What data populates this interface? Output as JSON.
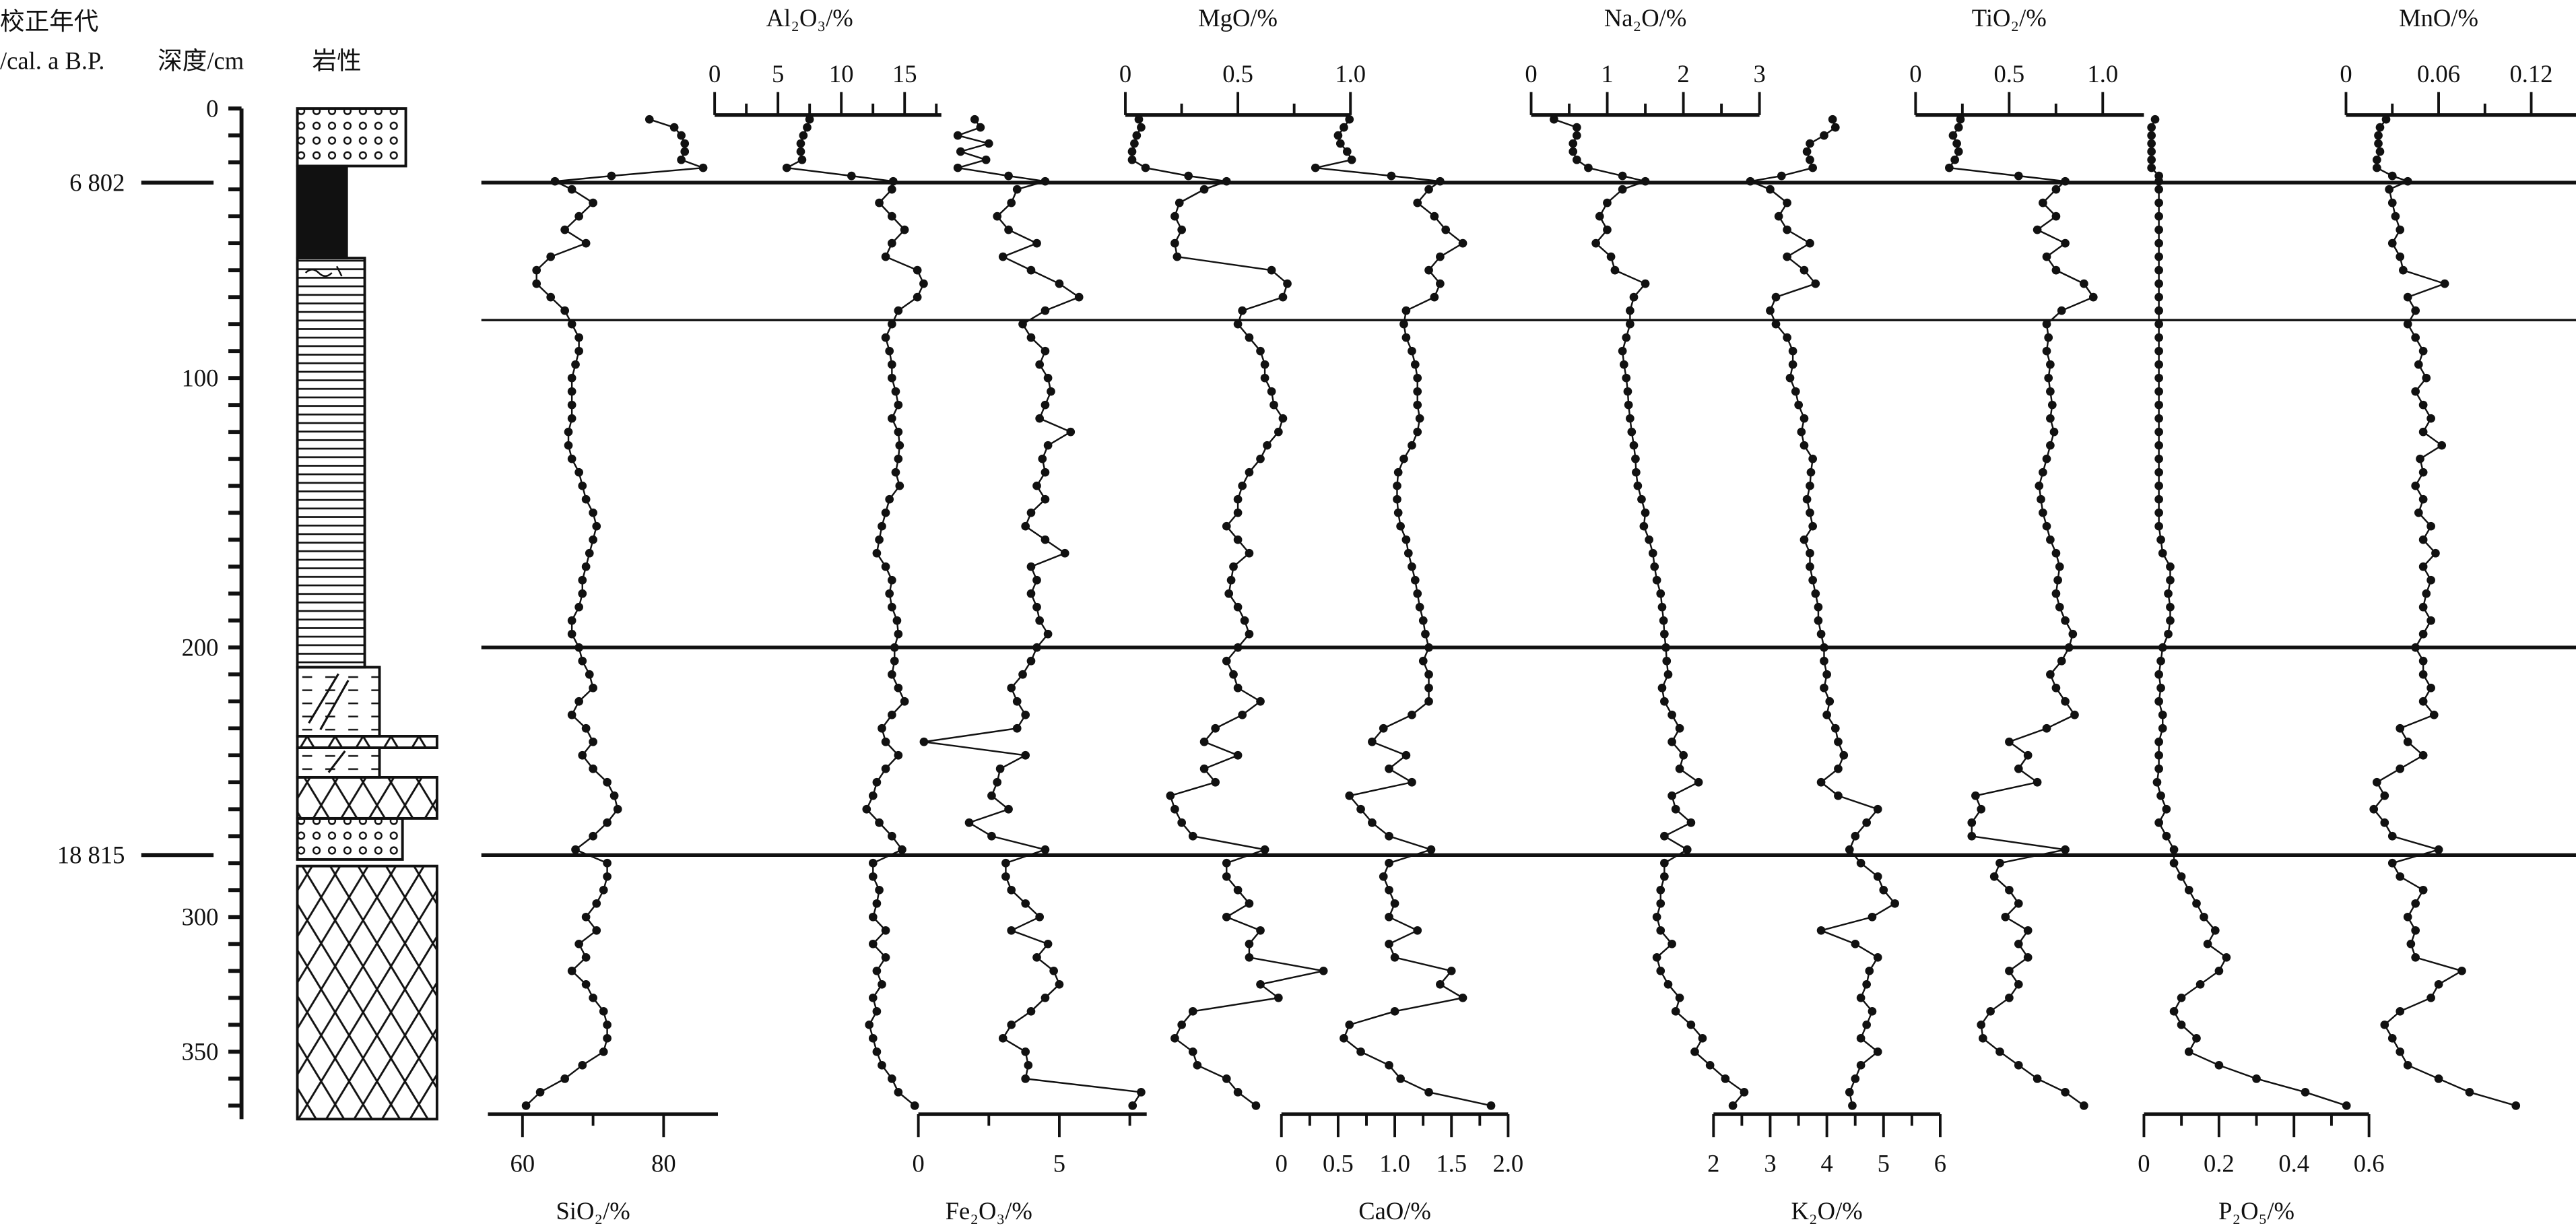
{
  "header": {
    "age_title_line1": "校正年代",
    "age_title_line2": "/cal. a B.P.",
    "depth_title": "深度/cm",
    "lithology_title": "岩性"
  },
  "ages": [
    {
      "label": "6 802",
      "depth_cm": 27.5
    },
    {
      "label": "18 815",
      "depth_cm": 277
    }
  ],
  "depth_axis": {
    "tick_labels": [
      "0",
      "100",
      "200",
      "300",
      "350"
    ],
    "minor_step_cm": 10,
    "range_cm": [
      0,
      375
    ]
  },
  "unit_boundaries_cm": [
    27.5,
    78.5,
    200,
    277
  ],
  "chart_data": {
    "type": "line",
    "title": "",
    "ylabel": "深度/cm",
    "y_reversed": true,
    "ylim": [
      0,
      375
    ],
    "markers": "filled-circle",
    "grid": false,
    "depth_cm": [
      4,
      7,
      10,
      13,
      16,
      19,
      22,
      25,
      27,
      30,
      35,
      40,
      45,
      50,
      55,
      60,
      65,
      70,
      75,
      80,
      85,
      90,
      95,
      100,
      105,
      110,
      115,
      120,
      125,
      130,
      135,
      140,
      145,
      150,
      155,
      160,
      165,
      170,
      175,
      180,
      185,
      190,
      195,
      200,
      205,
      210,
      215,
      220,
      225,
      230,
      235,
      240,
      245,
      250,
      255,
      260,
      265,
      270,
      275,
      280,
      285,
      290,
      295,
      300,
      305,
      310,
      315,
      320,
      325,
      330,
      335,
      340,
      345,
      350,
      355,
      360,
      365,
      370
    ],
    "series": [
      {
        "name": "SiO₂/%",
        "axis": "bottom",
        "xlim": [
          55.1,
          87.7
        ],
        "tick_labels": [
          "60",
          "80"
        ],
        "values": [
          78,
          81.5,
          82.5,
          83,
          83,
          82.5,
          85.6,
          72.6,
          64.6,
          67,
          70,
          68,
          66,
          69,
          64,
          62,
          62,
          64,
          66,
          67,
          68,
          68,
          67.5,
          67,
          67,
          67,
          67,
          66.5,
          66.5,
          67,
          68,
          68.5,
          69,
          70,
          70.5,
          70,
          69.5,
          69,
          68.5,
          68.5,
          68,
          67,
          67,
          68,
          68.5,
          69.5,
          70,
          68,
          67,
          69,
          70,
          68.5,
          70,
          72,
          73,
          73.5,
          72,
          70,
          67.5,
          72,
          72,
          71.5,
          70.5,
          69,
          70.5,
          68,
          69,
          67,
          69,
          70,
          71.5,
          72,
          72,
          71.5,
          68.5,
          66,
          62.5,
          60.5
        ]
      },
      {
        "name": "Al₂O₃/%",
        "axis": "top",
        "xlim": [
          0,
          17.9
        ],
        "tick_labels": [
          "0",
          "5",
          "10",
          "15"
        ],
        "values": [
          7.5,
          7.3,
          7,
          6.8,
          6.8,
          6.9,
          5.7,
          10.8,
          14.1,
          14,
          13,
          14,
          15,
          14,
          13.5,
          16,
          16.5,
          16,
          14.5,
          14,
          13.5,
          13.8,
          14,
          14,
          14.3,
          14.5,
          14,
          14.5,
          14.6,
          14.5,
          14.3,
          14.6,
          13.8,
          13.5,
          13.2,
          13,
          12.8,
          13.5,
          14,
          13.8,
          14,
          14.4,
          14.5,
          14.2,
          14.2,
          14,
          14.5,
          15,
          14,
          13.2,
          13.5,
          14.5,
          13.5,
          12.8,
          12.5,
          12,
          13,
          14,
          14.8,
          12.5,
          12.5,
          13,
          12.8,
          12.5,
          13.5,
          12.5,
          13.5,
          12.8,
          13.2,
          12.5,
          12.8,
          12.2,
          12.5,
          12.8,
          13.2,
          14,
          14.5,
          15.8
        ]
      },
      {
        "name": "Fe₂O₃/%",
        "axis": "bottom",
        "xlim": [
          0,
          8.1
        ],
        "tick_labels": [
          "0",
          "5"
        ],
        "values": [
          2,
          2.2,
          1.4,
          2.5,
          1.5,
          2.4,
          1.4,
          3.2,
          4.5,
          3.5,
          3.3,
          2.8,
          3.2,
          4.2,
          3,
          4,
          5,
          5.7,
          4.5,
          3.7,
          4,
          4.5,
          4.3,
          4.6,
          4.7,
          4.5,
          4.3,
          5.4,
          4.6,
          4.4,
          4.5,
          4.2,
          4.5,
          4,
          3.8,
          4.5,
          5.2,
          4,
          4.2,
          4,
          4.2,
          4.3,
          4.6,
          4.2,
          4,
          3.7,
          3.3,
          3.5,
          3.8,
          3.5,
          0.2,
          3.8,
          2.9,
          2.8,
          2.6,
          3.2,
          1.8,
          2.6,
          4.5,
          3.1,
          3.1,
          3.3,
          3.8,
          4.3,
          3.3,
          4.6,
          4.2,
          4.8,
          5,
          4.5,
          4,
          3.3,
          3,
          3.8,
          3.9,
          3.8,
          7.9,
          7.6
        ]
      },
      {
        "name": "MgO/%",
        "axis": "top",
        "xlim": [
          0,
          1.0
        ],
        "tick_labels": [
          "0",
          "0.5",
          "1.0"
        ],
        "values": [
          0.06,
          0.07,
          0.05,
          0.04,
          0.03,
          0.03,
          0.09,
          0.28,
          0.45,
          0.35,
          0.24,
          0.22,
          0.25,
          0.22,
          0.23,
          0.65,
          0.72,
          0.7,
          0.52,
          0.5,
          0.55,
          0.6,
          0.62,
          0.62,
          0.65,
          0.66,
          0.7,
          0.68,
          0.63,
          0.6,
          0.55,
          0.52,
          0.5,
          0.5,
          0.45,
          0.5,
          0.55,
          0.48,
          0.47,
          0.46,
          0.5,
          0.53,
          0.55,
          0.5,
          0.45,
          0.48,
          0.5,
          0.6,
          0.52,
          0.4,
          0.35,
          0.5,
          0.35,
          0.4,
          0.2,
          0.22,
          0.25,
          0.3,
          0.62,
          0.45,
          0.45,
          0.5,
          0.55,
          0.45,
          0.6,
          0.55,
          0.55,
          0.88,
          0.6,
          0.68,
          0.3,
          0.25,
          0.22,
          0.3,
          0.32,
          0.45,
          0.5,
          0.58
        ]
      },
      {
        "name": "CaO/%",
        "axis": "bottom",
        "xlim": [
          0,
          2.0
        ],
        "tick_labels": [
          "0",
          "0.5",
          "1.0",
          "1.5",
          "2.0"
        ],
        "values": [
          0.6,
          0.55,
          0.5,
          0.52,
          0.58,
          0.62,
          0.3,
          0.97,
          1.4,
          1.3,
          1.2,
          1.35,
          1.45,
          1.6,
          1.4,
          1.3,
          1.4,
          1.35,
          1.1,
          1.08,
          1.1,
          1.15,
          1.18,
          1.2,
          1.2,
          1.2,
          1.22,
          1.2,
          1.15,
          1.08,
          1.03,
          1.02,
          1.02,
          1.03,
          1.05,
          1.1,
          1.12,
          1.15,
          1.18,
          1.2,
          1.22,
          1.25,
          1.27,
          1.3,
          1.25,
          1.3,
          1.3,
          1.3,
          1.15,
          0.9,
          0.8,
          1.1,
          0.95,
          1.15,
          0.6,
          0.7,
          0.8,
          0.95,
          1.32,
          0.95,
          0.9,
          0.95,
          1.0,
          0.95,
          1.2,
          0.95,
          1.0,
          1.5,
          1.4,
          1.6,
          1.0,
          0.6,
          0.55,
          0.7,
          0.95,
          1.05,
          1.3,
          1.85
        ]
      },
      {
        "name": "Na₂O/%",
        "axis": "top",
        "xlim": [
          0,
          3.0
        ],
        "tick_labels": [
          "0",
          "1",
          "2",
          "3"
        ],
        "values": [
          0.3,
          0.6,
          0.6,
          0.55,
          0.55,
          0.6,
          0.75,
          1.2,
          1.5,
          1.2,
          1.0,
          0.9,
          1.0,
          0.85,
          1.05,
          1.1,
          1.5,
          1.35,
          1.3,
          1.3,
          1.25,
          1.2,
          1.22,
          1.25,
          1.27,
          1.28,
          1.3,
          1.32,
          1.35,
          1.37,
          1.38,
          1.4,
          1.45,
          1.5,
          1.48,
          1.55,
          1.6,
          1.62,
          1.65,
          1.7,
          1.72,
          1.74,
          1.75,
          1.77,
          1.78,
          1.8,
          1.72,
          1.75,
          1.85,
          1.95,
          1.85,
          2.0,
          1.95,
          2.2,
          1.85,
          1.9,
          2.1,
          1.75,
          2.05,
          1.75,
          1.75,
          1.7,
          1.7,
          1.65,
          1.7,
          1.85,
          1.65,
          1.7,
          1.8,
          1.95,
          1.9,
          2.1,
          2.25,
          2.15,
          2.35,
          2.55,
          2.8,
          2.65
        ]
      },
      {
        "name": "K₂O/%",
        "axis": "bottom",
        "xlim": [
          2,
          6
        ],
        "tick_labels": [
          "2",
          "3",
          "4",
          "5",
          "6"
        ],
        "values": [
          4.1,
          4.15,
          3.95,
          3.7,
          3.65,
          3.7,
          3.75,
          3.2,
          2.65,
          3.0,
          3.3,
          3.15,
          3.3,
          3.7,
          3.3,
          3.6,
          3.8,
          3.1,
          3.0,
          3.1,
          3.3,
          3.4,
          3.4,
          3.35,
          3.45,
          3.5,
          3.6,
          3.55,
          3.6,
          3.75,
          3.72,
          3.7,
          3.65,
          3.7,
          3.75,
          3.6,
          3.7,
          3.7,
          3.75,
          3.8,
          3.85,
          3.85,
          3.9,
          3.95,
          3.95,
          4.0,
          3.95,
          4.05,
          4.0,
          4.15,
          4.2,
          4.3,
          4.2,
          3.9,
          4.2,
          4.9,
          4.7,
          4.5,
          4.4,
          4.6,
          4.9,
          5.0,
          5.2,
          4.8,
          3.9,
          4.5,
          4.9,
          4.75,
          4.7,
          4.6,
          4.8,
          4.7,
          4.6,
          4.9,
          4.6,
          4.5,
          4.4,
          4.45
        ]
      },
      {
        "name": "TiO₂/%",
        "axis": "top",
        "xlim": [
          0,
          1.22
        ],
        "tick_labels": [
          "0",
          "0.5",
          "1.0"
        ],
        "values": [
          0.24,
          0.23,
          0.2,
          0.22,
          0.23,
          0.21,
          0.18,
          0.55,
          0.8,
          0.75,
          0.68,
          0.75,
          0.65,
          0.8,
          0.7,
          0.75,
          0.9,
          0.95,
          0.78,
          0.7,
          0.71,
          0.7,
          0.72,
          0.71,
          0.72,
          0.73,
          0.72,
          0.74,
          0.72,
          0.7,
          0.68,
          0.66,
          0.67,
          0.68,
          0.7,
          0.72,
          0.75,
          0.77,
          0.76,
          0.75,
          0.77,
          0.8,
          0.84,
          0.82,
          0.78,
          0.72,
          0.75,
          0.8,
          0.85,
          0.7,
          0.5,
          0.6,
          0.55,
          0.65,
          0.32,
          0.35,
          0.3,
          0.3,
          0.8,
          0.45,
          0.42,
          0.5,
          0.55,
          0.48,
          0.6,
          0.55,
          0.6,
          0.5,
          0.55,
          0.5,
          0.4,
          0.35,
          0.36,
          0.45,
          0.55,
          0.65,
          0.8,
          0.9
        ]
      },
      {
        "name": "P₂O₅/%",
        "axis": "bottom",
        "xlim": [
          0,
          0.6
        ],
        "tick_labels": [
          "0",
          "0.2",
          "0.4",
          "0.6"
        ],
        "values": [
          0.03,
          0.02,
          0.02,
          0.02,
          0.02,
          0.02,
          0.02,
          0.04,
          0.04,
          0.04,
          0.04,
          0.04,
          0.04,
          0.04,
          0.04,
          0.04,
          0.04,
          0.04,
          0.04,
          0.04,
          0.04,
          0.04,
          0.04,
          0.04,
          0.04,
          0.04,
          0.04,
          0.04,
          0.04,
          0.04,
          0.04,
          0.04,
          0.04,
          0.04,
          0.04,
          0.045,
          0.05,
          0.07,
          0.07,
          0.065,
          0.07,
          0.07,
          0.065,
          0.05,
          0.045,
          0.04,
          0.045,
          0.04,
          0.05,
          0.05,
          0.04,
          0.04,
          0.04,
          0.035,
          0.045,
          0.06,
          0.04,
          0.06,
          0.08,
          0.08,
          0.1,
          0.12,
          0.14,
          0.16,
          0.19,
          0.17,
          0.22,
          0.2,
          0.15,
          0.1,
          0.08,
          0.1,
          0.14,
          0.12,
          0.2,
          0.3,
          0.43,
          0.54
        ]
      },
      {
        "name": "MnO/%",
        "axis": "top",
        "xlim": [
          0,
          0.149
        ],
        "tick_labels": [
          "0",
          "0.06",
          "0.12"
        ],
        "values": [
          0.026,
          0.022,
          0.021,
          0.021,
          0.022,
          0.02,
          0.02,
          0.03,
          0.04,
          0.028,
          0.03,
          0.032,
          0.035,
          0.03,
          0.035,
          0.037,
          0.064,
          0.04,
          0.045,
          0.04,
          0.045,
          0.05,
          0.047,
          0.052,
          0.045,
          0.05,
          0.055,
          0.05,
          0.062,
          0.048,
          0.05,
          0.045,
          0.05,
          0.047,
          0.055,
          0.05,
          0.058,
          0.05,
          0.055,
          0.052,
          0.05,
          0.055,
          0.05,
          0.045,
          0.05,
          0.05,
          0.055,
          0.05,
          0.057,
          0.035,
          0.04,
          0.05,
          0.035,
          0.02,
          0.025,
          0.018,
          0.025,
          0.03,
          0.06,
          0.03,
          0.035,
          0.05,
          0.045,
          0.04,
          0.045,
          0.042,
          0.045,
          0.075,
          0.06,
          0.055,
          0.035,
          0.025,
          0.03,
          0.035,
          0.04,
          0.06,
          0.08,
          0.11
        ]
      }
    ]
  },
  "colors": {
    "ink": "#111111",
    "background": "#ffffff"
  }
}
